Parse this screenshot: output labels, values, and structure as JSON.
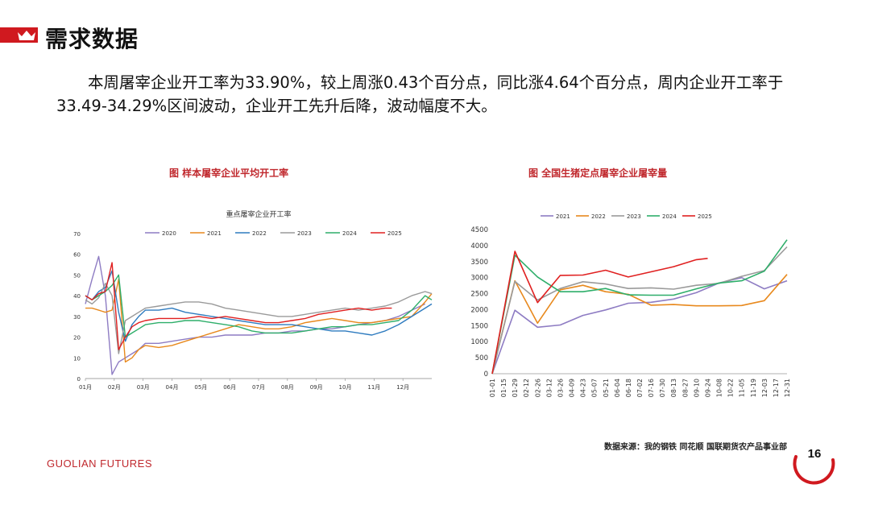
{
  "title": "需求数据",
  "intro": "本周屠宰企业开工率为33.90%，较上周涨0.43个百分点，同比涨4.64个百分点，周内企业开工率于33.49-34.29%区间波动，企业开工先升后降，波动幅度不大。",
  "source": "数据来源：我的钢铁  同花顺  国联期货农产品事业部",
  "footer_logo": "GUOLIAN FUTURES",
  "page_number": "16",
  "colors": {
    "brand_red": "#d0191f",
    "caption_red": "#c0282d"
  },
  "icons": [
    "crown-icon"
  ],
  "chart_data": [
    {
      "type": "line",
      "caption": "图   样本屠宰企业平均开工率",
      "title": "重点屠宰企业开工率",
      "ylim": [
        0,
        70
      ],
      "y_ticks": [
        "0",
        "10",
        "20",
        "30",
        "40",
        "50",
        "60",
        "70"
      ],
      "x_ticks": [
        "01月",
        "02月",
        "03月",
        "04月",
        "05月",
        "06月",
        "07月",
        "08月",
        "09月",
        "10月",
        "11月",
        "12月"
      ],
      "x_unit": "week-of-year",
      "xlim": [
        1,
        53
      ],
      "legend_position": "top",
      "series": [
        {
          "name": "2020",
          "color": "#8e7cc3",
          "x": [
            1,
            2,
            3,
            4,
            5,
            6,
            7,
            8,
            9,
            10,
            12,
            14,
            16,
            18,
            20,
            22,
            24,
            26,
            28,
            30,
            32,
            34,
            36,
            38,
            40,
            42,
            44,
            46,
            48,
            50,
            52
          ],
          "y": [
            36,
            48,
            59,
            40,
            2,
            8,
            10,
            12,
            14,
            17,
            17,
            18,
            19,
            20,
            20,
            21,
            21,
            21,
            22,
            22,
            23,
            23,
            24,
            24,
            25,
            26,
            27,
            28,
            30,
            33,
            36
          ]
        },
        {
          "name": "2021",
          "color": "#e8891d",
          "x": [
            1,
            2,
            3,
            4,
            5,
            6,
            7,
            8,
            9,
            10,
            12,
            14,
            16,
            18,
            20,
            22,
            24,
            26,
            28,
            30,
            32,
            34,
            36,
            38,
            40,
            42,
            44,
            46,
            48,
            50,
            52,
            53
          ],
          "y": [
            34,
            34,
            33,
            32,
            33,
            48,
            8,
            10,
            14,
            16,
            15,
            16,
            18,
            20,
            22,
            24,
            26,
            25,
            24,
            24,
            25,
            27,
            28,
            29,
            28,
            27,
            27,
            28,
            29,
            30,
            37,
            41
          ]
        },
        {
          "name": "2022",
          "color": "#2e7bbf",
          "x": [
            1,
            2,
            3,
            4,
            5,
            6,
            7,
            8,
            9,
            10,
            12,
            14,
            16,
            18,
            20,
            22,
            24,
            26,
            28,
            30,
            32,
            34,
            36,
            38,
            40,
            42,
            44,
            46,
            48,
            50,
            52,
            53
          ],
          "y": [
            40,
            38,
            42,
            44,
            52,
            32,
            18,
            26,
            30,
            33,
            33,
            34,
            32,
            31,
            30,
            29,
            28,
            27,
            26,
            26,
            26,
            25,
            24,
            23,
            23,
            22,
            21,
            23,
            26,
            30,
            34,
            36
          ]
        },
        {
          "name": "2023",
          "color": "#9a9a9a",
          "x": [
            1,
            2,
            3,
            4,
            5,
            6,
            7,
            8,
            9,
            10,
            12,
            14,
            16,
            18,
            20,
            22,
            24,
            26,
            28,
            30,
            32,
            34,
            36,
            38,
            40,
            42,
            44,
            46,
            48,
            50,
            52,
            53
          ],
          "y": [
            38,
            36,
            39,
            46,
            40,
            12,
            28,
            30,
            32,
            34,
            35,
            36,
            37,
            37,
            36,
            34,
            33,
            32,
            31,
            30,
            30,
            31,
            32,
            33,
            34,
            33,
            34,
            35,
            37,
            40,
            42,
            41
          ]
        },
        {
          "name": "2024",
          "color": "#2eae6a",
          "x": [
            1,
            2,
            3,
            4,
            5,
            6,
            7,
            8,
            9,
            10,
            12,
            14,
            16,
            18,
            20,
            22,
            24,
            26,
            28,
            30,
            32,
            34,
            36,
            38,
            40,
            42,
            44,
            46,
            48,
            50,
            52,
            53
          ],
          "y": [
            40,
            38,
            40,
            42,
            45,
            50,
            20,
            22,
            24,
            26,
            27,
            27,
            28,
            28,
            27,
            26,
            25,
            23,
            22,
            22,
            22,
            23,
            24,
            25,
            25,
            26,
            26,
            27,
            28,
            33,
            40,
            38
          ]
        },
        {
          "name": "2025",
          "color": "#e02020",
          "x": [
            1,
            2,
            3,
            4,
            5,
            6,
            7,
            8,
            9,
            10,
            12,
            14,
            16,
            18,
            20,
            22,
            24,
            26,
            28,
            30,
            32,
            34,
            36,
            38,
            40,
            42,
            44,
            46,
            47
          ],
          "y": [
            40,
            38,
            41,
            42,
            56,
            14,
            20,
            25,
            27,
            28,
            29,
            29,
            29,
            30,
            29,
            30,
            29,
            28,
            27,
            27,
            28,
            29,
            31,
            32,
            33,
            34,
            33,
            34,
            34
          ]
        }
      ]
    },
    {
      "type": "line",
      "caption": "图  全国生猪定点屠宰企业屠宰量",
      "title": "",
      "ylim": [
        0,
        4500
      ],
      "y_ticks": [
        "0",
        "500",
        "1000",
        "1500",
        "2000",
        "2500",
        "3000",
        "3500",
        "4000",
        "4500"
      ],
      "categories": [
        "01-01",
        "01-15",
        "01-29",
        "02-12",
        "02-26",
        "03-12",
        "03-26",
        "04-09",
        "04-23",
        "05-07",
        "05-21",
        "06-04",
        "06-18",
        "07-02",
        "07-16",
        "07-30",
        "08-13",
        "08-27",
        "09-10",
        "09-24",
        "10-08",
        "10-22",
        "11-05",
        "11-19",
        "12-03",
        "12-17",
        "12-31"
      ],
      "legend_position": "top",
      "series": [
        {
          "name": "2021",
          "color": "#8e7cc3",
          "x": [
            1,
            3,
            5,
            7,
            9,
            11,
            13,
            15,
            17,
            19,
            21,
            23,
            25,
            27
          ],
          "y": [
            0,
            1980,
            1450,
            1520,
            1820,
            1990,
            2200,
            2230,
            2330,
            2530,
            2830,
            3000,
            2650,
            2900
          ]
        },
        {
          "name": "2022",
          "color": "#e8891d",
          "x": [
            1,
            3,
            5,
            7,
            9,
            11,
            13,
            15,
            17,
            19,
            21,
            23,
            25,
            27
          ],
          "y": [
            0,
            2900,
            1580,
            2620,
            2760,
            2560,
            2480,
            2140,
            2160,
            2120,
            2120,
            2130,
            2280,
            3100
          ]
        },
        {
          "name": "2023",
          "color": "#9a9a9a",
          "x": [
            1,
            3,
            5,
            7,
            9,
            11,
            13,
            15,
            17,
            19,
            21,
            23,
            25,
            27
          ],
          "y": [
            0,
            2880,
            2300,
            2660,
            2870,
            2800,
            2660,
            2680,
            2640,
            2760,
            2820,
            3040,
            3220,
            3960
          ]
        },
        {
          "name": "2024",
          "color": "#2eae6a",
          "x": [
            1,
            3,
            5,
            7,
            9,
            11,
            13,
            15,
            17,
            19,
            21,
            23,
            25,
            27
          ],
          "y": [
            0,
            3700,
            3020,
            2560,
            2560,
            2660,
            2460,
            2450,
            2450,
            2650,
            2830,
            2900,
            3200,
            4180
          ]
        },
        {
          "name": "2025",
          "color": "#e02020",
          "x": [
            1,
            3,
            5,
            7,
            9,
            11,
            13,
            15,
            17,
            19,
            20
          ],
          "y": [
            0,
            3820,
            2220,
            3070,
            3080,
            3230,
            3020,
            3180,
            3340,
            3560,
            3600
          ]
        }
      ]
    }
  ]
}
